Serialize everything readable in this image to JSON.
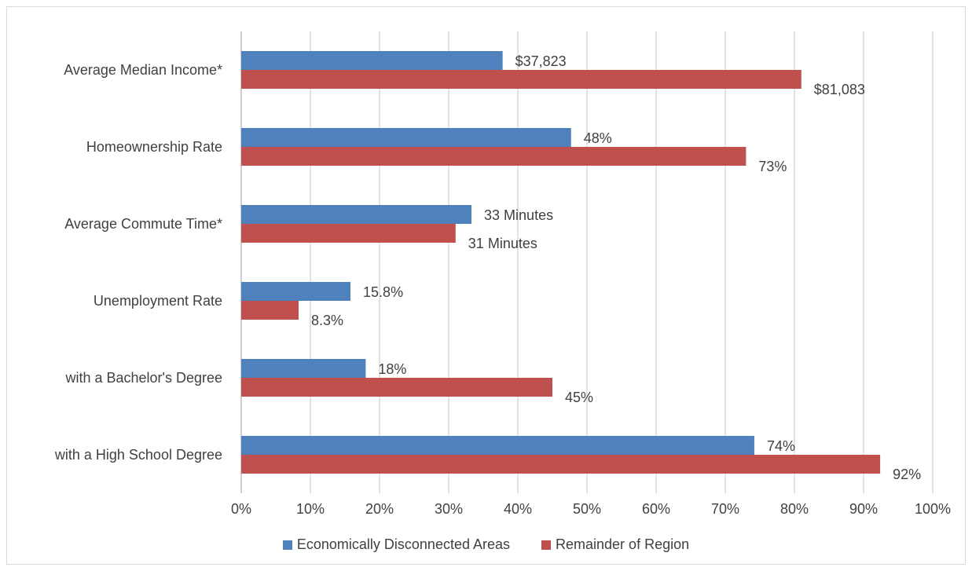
{
  "chart_data": {
    "type": "bar",
    "orientation": "horizontal",
    "categories": [
      "Average Median Income*",
      "Homeownership Rate",
      "Average Commute Time*",
      "Unemployment Rate",
      "with a Bachelor's Degree",
      "with a High School Degree"
    ],
    "series": [
      {
        "name": "Economically Disconnected Areas",
        "color": "#4f81bd",
        "values": [
          0.378,
          0.477,
          0.333,
          0.158,
          0.18,
          0.742
        ],
        "labels": [
          "$37,823",
          "48%",
          "33 Minutes",
          "15.8%",
          "18%",
          "74%"
        ]
      },
      {
        "name": "Remainder of Region",
        "color": "#c0504d",
        "values": [
          0.81,
          0.73,
          0.31,
          0.083,
          0.45,
          0.924
        ],
        "labels": [
          "$81,083",
          "73%",
          "31 Minutes",
          "8.3%",
          "45%",
          "92%"
        ]
      }
    ],
    "xlim": [
      0,
      1
    ],
    "xticks": [
      "0%",
      "10%",
      "20%",
      "30%",
      "40%",
      "50%",
      "60%",
      "70%",
      "80%",
      "90%",
      "100%"
    ],
    "grid": true,
    "legend_position": "bottom"
  }
}
